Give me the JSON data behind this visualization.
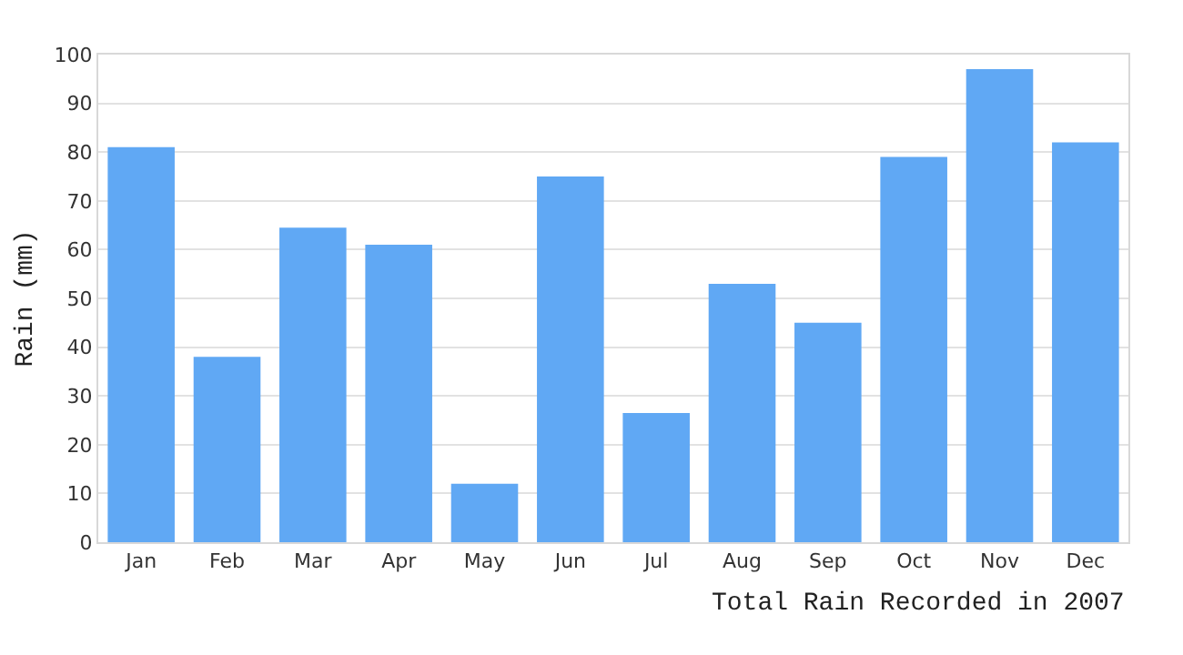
{
  "chart_data": {
    "type": "bar",
    "xlabel": "Total Rain Recorded in 2007",
    "ylabel": "Rain (mm)",
    "categories": [
      "Jan",
      "Feb",
      "Mar",
      "Apr",
      "May",
      "Jun",
      "Jul",
      "Aug",
      "Sep",
      "Oct",
      "Nov",
      "Dec"
    ],
    "values": [
      81,
      38,
      64.5,
      61,
      12,
      75,
      26.5,
      53,
      45,
      79,
      97,
      82
    ],
    "color": "#60a8f4",
    "ylim": [
      0,
      100
    ],
    "yticks": [
      0,
      10,
      20,
      30,
      40,
      50,
      60,
      70,
      80,
      90,
      100
    ],
    "grid": "y"
  }
}
